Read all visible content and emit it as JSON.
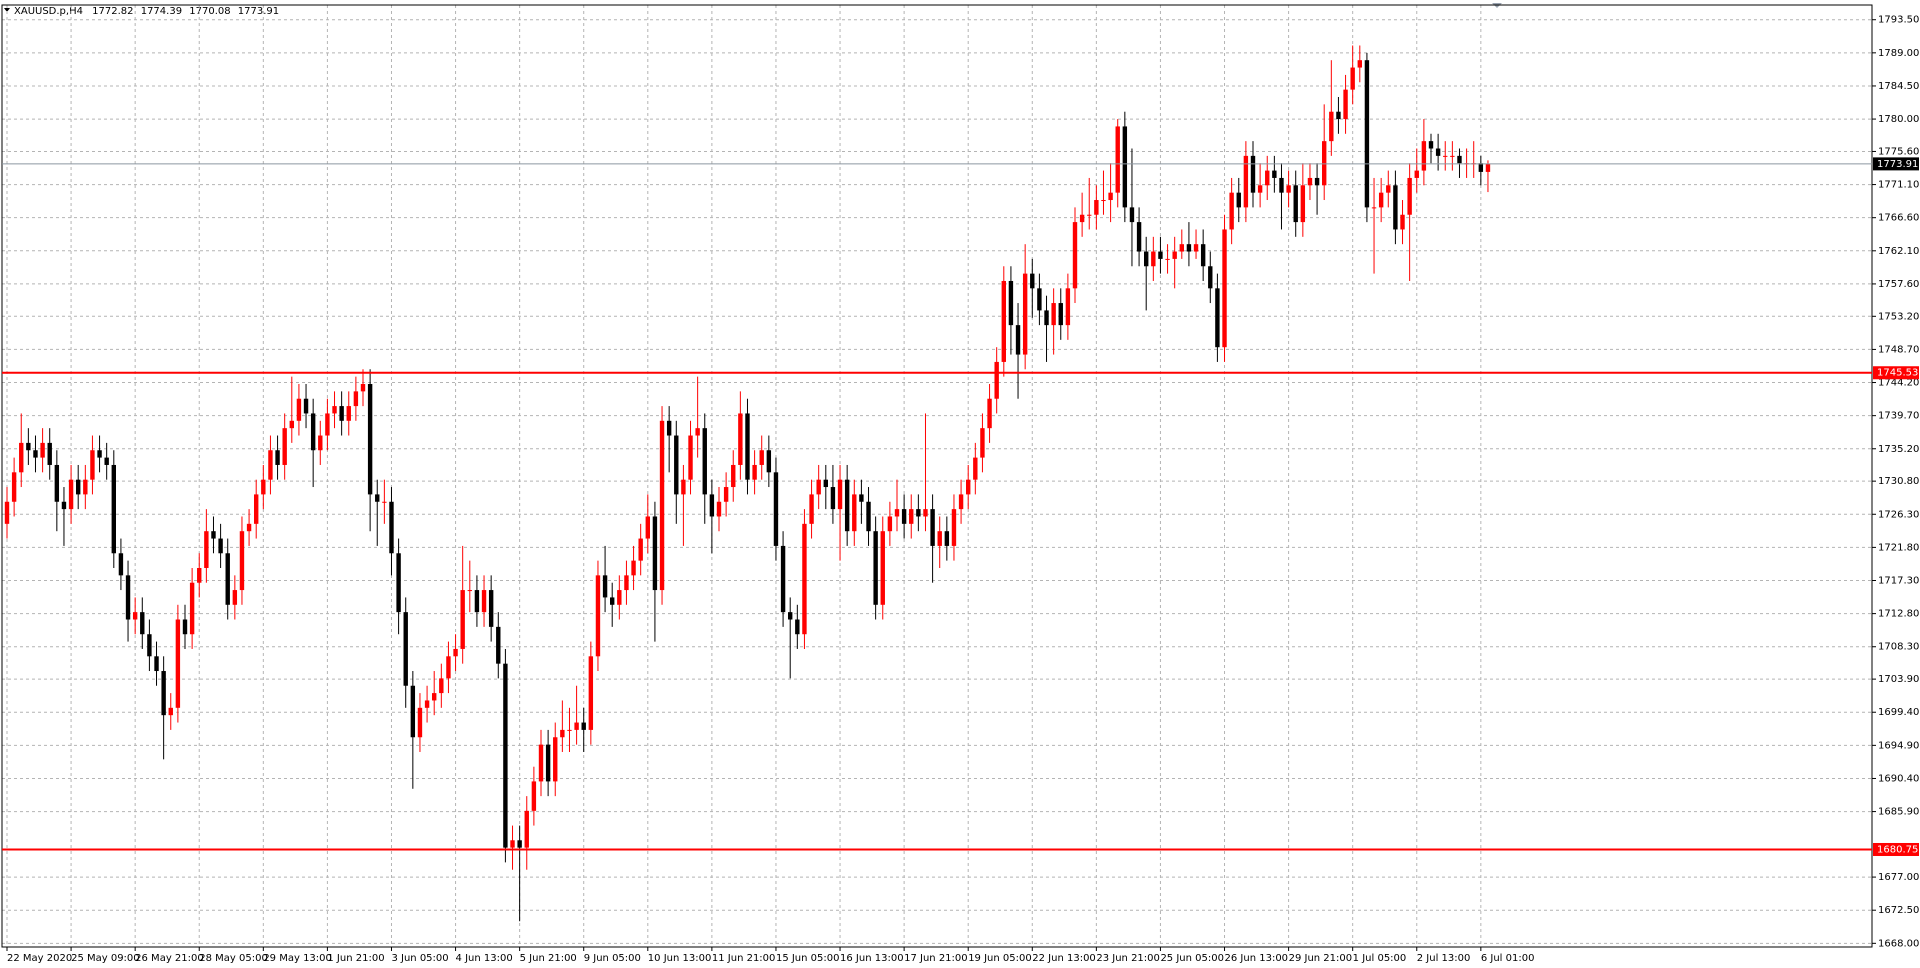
{
  "chart_data": {
    "type": "candlestick",
    "title": "XAUUSD.p,H4",
    "bull_color": "#ff0000",
    "bear_color": "#000000",
    "grid": true,
    "ylim": [
      1667.5,
      1795.5
    ],
    "yticks": [
      {
        "value": 1793.5,
        "label": "1793.50"
      },
      {
        "value": 1789,
        "label": "1789.00"
      },
      {
        "value": 1784.5,
        "label": "1784.50"
      },
      {
        "value": 1780,
        "label": "1780.00"
      },
      {
        "value": 1775.6,
        "label": "1775.60"
      },
      {
        "value": 1771.1,
        "label": "1771.10"
      },
      {
        "value": 1766.6,
        "label": "1766.60"
      },
      {
        "value": 1762.1,
        "label": "1762.10"
      },
      {
        "value": 1757.6,
        "label": "1757.60"
      },
      {
        "value": 1753.2,
        "label": "1753.20"
      },
      {
        "value": 1748.7,
        "label": "1748.70"
      },
      {
        "value": 1744.2,
        "label": "1744.20"
      },
      {
        "value": 1739.7,
        "label": "1739.70"
      },
      {
        "value": 1735.2,
        "label": "1735.20"
      },
      {
        "value": 1730.8,
        "label": "1730.80"
      },
      {
        "value": 1726.3,
        "label": "1726.30"
      },
      {
        "value": 1721.8,
        "label": "1721.80"
      },
      {
        "value": 1717.3,
        "label": "1717.30"
      },
      {
        "value": 1712.8,
        "label": "1712.80"
      },
      {
        "value": 1708.3,
        "label": "1708.30"
      },
      {
        "value": 1703.9,
        "label": "1703.90"
      },
      {
        "value": 1699.4,
        "label": "1699.40"
      },
      {
        "value": 1694.9,
        "label": "1694.90"
      },
      {
        "value": 1690.4,
        "label": "1690.40"
      },
      {
        "value": 1685.9,
        "label": "1685.90"
      },
      {
        "value": 1677,
        "label": "1677.00"
      },
      {
        "value": 1672.5,
        "label": "1672.50"
      },
      {
        "value": 1668,
        "label": "1668.00"
      }
    ],
    "hlines": [
      {
        "value": 1745.53,
        "color": "#ff0000"
      },
      {
        "value": 1680.75,
        "color": "#ff0000"
      }
    ],
    "x": [
      "22 May 2020",
      null,
      null,
      null,
      null,
      null,
      null,
      null,
      null,
      "25 May 09:00",
      null,
      null,
      null,
      null,
      null,
      null,
      null,
      null,
      "26 May 21:00",
      null,
      null,
      null,
      null,
      null,
      null,
      null,
      null,
      "28 May 05:00",
      null,
      null,
      null,
      null,
      null,
      null,
      null,
      null,
      "29 May 13:00",
      null,
      null,
      null,
      null,
      null,
      null,
      null,
      null,
      "1 Jun 21:00",
      null,
      null,
      null,
      null,
      null,
      null,
      null,
      null,
      "3 Jun 05:00",
      null,
      null,
      null,
      null,
      null,
      null,
      null,
      null,
      "4 Jun 13:00",
      null,
      null,
      null,
      null,
      null,
      null,
      null,
      null,
      "5 Jun 21:00",
      null,
      null,
      null,
      null,
      null,
      null,
      null,
      null,
      "9 Jun 05:00",
      null,
      null,
      null,
      null,
      null,
      null,
      null,
      null,
      "10 Jun 13:00",
      null,
      null,
      null,
      null,
      null,
      null,
      null,
      null,
      "11 Jun 21:00",
      null,
      null,
      null,
      null,
      null,
      null,
      null,
      null,
      "15 Jun 05:00",
      null,
      null,
      null,
      null,
      null,
      null,
      null,
      null,
      "16 Jun 13:00",
      null,
      null,
      null,
      null,
      null,
      null,
      null,
      null,
      "17 Jun 21:00",
      null,
      null,
      null,
      null,
      null,
      null,
      null,
      null,
      "19 Jun 05:00",
      null,
      null,
      null,
      null,
      null,
      null,
      null,
      null,
      "22 Jun 13:00",
      null,
      null,
      null,
      null,
      null,
      null,
      null,
      null,
      "23 Jun 21:00",
      null,
      null,
      null,
      null,
      null,
      null,
      null,
      null,
      "25 Jun 05:00",
      null,
      null,
      null,
      null,
      null,
      null,
      null,
      null,
      "26 Jun 13:00",
      null,
      null,
      null,
      null,
      null,
      null,
      null,
      null,
      "29 Jun 21:00",
      null,
      null,
      null,
      null,
      null,
      null,
      null,
      null,
      "1 Jul 05:00",
      null,
      null,
      null,
      null,
      null,
      null,
      null,
      null,
      "2 Jul 13:00",
      null,
      null,
      null,
      null,
      null,
      null,
      null,
      null,
      "6 Jul 01:00",
      null
    ],
    "open": [
      1725,
      1728,
      1732,
      1736,
      1735,
      1734,
      1736,
      1733,
      1728,
      1727,
      1731,
      1729,
      1731,
      1735,
      1734,
      1733,
      1721,
      1718,
      1712,
      1713,
      1710,
      1707,
      1705,
      1699,
      1700,
      1712,
      1710,
      1717,
      1719,
      1724,
      1723,
      1721,
      1714,
      1716,
      1724,
      1725,
      1729,
      1731,
      1735,
      1733,
      1738,
      1739,
      1742,
      1740,
      1735,
      1737,
      1740,
      1741,
      1739,
      1741,
      1743,
      1744,
      1729,
      1728,
      1728,
      1721,
      1713,
      1703,
      1696,
      1700,
      1701,
      1702,
      1704,
      1707,
      1708,
      1716,
      1716,
      1713,
      1716,
      1711,
      1706,
      1681,
      1682,
      1681,
      1686,
      1690,
      1695,
      1690,
      1696,
      1697,
      1697,
      1698,
      1697,
      1707,
      1718,
      1715,
      1714,
      1716,
      1718,
      1720,
      1723,
      1726,
      1716,
      1739,
      1737,
      1729,
      1731,
      1737,
      1738,
      1729,
      1726,
      1728,
      1730,
      1733,
      1740,
      1731,
      1733,
      1735,
      1732,
      1722,
      1713,
      1712,
      1710,
      1725,
      1729,
      1731,
      1730,
      1727,
      1731,
      1724,
      1729,
      1728,
      1724,
      1714,
      1724,
      1726,
      1727,
      1725,
      1727,
      1726,
      1727,
      1722,
      1724,
      1722,
      1727,
      1729,
      1731,
      1734,
      1738,
      1742,
      1747,
      1758,
      1752,
      1748,
      1759,
      1757,
      1754,
      1752,
      1755,
      1752,
      1757,
      1766,
      1767,
      1767,
      1769,
      1769,
      1770,
      1779,
      1768,
      1766,
      1762,
      1760,
      1762,
      1761,
      1761,
      1762,
      1763,
      1762,
      1763,
      1760,
      1757,
      1749,
      1765,
      1770,
      1768,
      1775,
      1770,
      1771,
      1773,
      1772,
      1770,
      1771,
      1766,
      1771,
      1772,
      1771,
      1777,
      1781,
      1780,
      1784,
      1787,
      1788,
      1768,
      1768,
      1770,
      1771,
      1765,
      1767,
      1772,
      1773,
      1777,
      1776,
      1775,
      1775,
      1775,
      1774,
      1774,
      1774,
      1772.82
    ],
    "high": [
      1730,
      1734,
      1740,
      1738,
      1737,
      1738,
      1738,
      1735,
      1730,
      1733,
      1733,
      1733,
      1737,
      1737,
      1736,
      1735,
      1723,
      1720,
      1715,
      1715,
      1712,
      1709,
      1707,
      1702,
      1714,
      1714,
      1719,
      1721,
      1727,
      1726,
      1725,
      1723,
      1718,
      1726,
      1727,
      1731,
      1733,
      1737,
      1737,
      1740,
      1745,
      1744,
      1744,
      1742,
      1739,
      1742,
      1743,
      1743,
      1743,
      1745,
      1746,
      1746,
      1731,
      1731,
      1730,
      1723,
      1715,
      1705,
      1702,
      1703,
      1705,
      1706,
      1709,
      1710,
      1722,
      1720,
      1718,
      1718,
      1718,
      1713,
      1708,
      1684,
      1684,
      1688,
      1692,
      1697,
      1697,
      1698,
      1701,
      1700,
      1703,
      1700,
      1709,
      1720,
      1722,
      1717,
      1718,
      1720,
      1722,
      1725,
      1729,
      1728,
      1741,
      1741,
      1739,
      1733,
      1739,
      1745,
      1740,
      1731,
      1730,
      1732,
      1735,
      1743,
      1742,
      1735,
      1737,
      1737,
      1734,
      1724,
      1715,
      1714,
      1727,
      1731,
      1733,
      1733,
      1733,
      1733,
      1733,
      1731,
      1731,
      1730,
      1726,
      1726,
      1728,
      1731,
      1729,
      1729,
      1729,
      1740,
      1729,
      1726,
      1726,
      1729,
      1731,
      1733,
      1736,
      1740,
      1744,
      1749,
      1760,
      1760,
      1755,
      1763,
      1761,
      1759,
      1756,
      1757,
      1757,
      1759,
      1768,
      1770,
      1772,
      1771,
      1773,
      1774,
      1780,
      1781,
      1776,
      1768,
      1764,
      1764,
      1764,
      1763,
      1764,
      1765,
      1766,
      1765,
      1765,
      1762,
      1759,
      1767,
      1772,
      1772,
      1777,
      1777,
      1774,
      1775,
      1775,
      1774,
      1773,
      1773,
      1774,
      1774,
      1774,
      1782,
      1788,
      1783,
      1786,
      1790,
      1790,
      1789,
      1772,
      1772,
      1773,
      1773,
      1769,
      1774,
      1776,
      1780,
      1778,
      1778,
      1777,
      1777,
      1776,
      1776,
      1777,
      1775,
      1774.39
    ],
    "low": [
      1723,
      1726,
      1730,
      1733,
      1732,
      1732,
      1731,
      1724,
      1722,
      1725,
      1727,
      1727,
      1729,
      1732,
      1731,
      1719,
      1716,
      1709,
      1710,
      1708,
      1705,
      1703,
      1693,
      1697,
      1698,
      1708,
      1708,
      1715,
      1717,
      1721,
      1719,
      1712,
      1712,
      1714,
      1722,
      1723,
      1727,
      1729,
      1731,
      1731,
      1736,
      1737,
      1738,
      1730,
      1733,
      1735,
      1738,
      1737,
      1737,
      1739,
      1741,
      1724,
      1722,
      1725,
      1718,
      1710,
      1700,
      1689,
      1694,
      1698,
      1699,
      1700,
      1702,
      1705,
      1706,
      1713,
      1711,
      1711,
      1709,
      1704,
      1679,
      1678,
      1671,
      1678,
      1684,
      1688,
      1688,
      1688,
      1694,
      1694,
      1695,
      1694,
      1695,
      1705,
      1713,
      1711,
      1712,
      1714,
      1716,
      1718,
      1721,
      1709,
      1714,
      1732,
      1725,
      1722,
      1729,
      1734,
      1725,
      1721,
      1724,
      1726,
      1728,
      1731,
      1729,
      1729,
      1731,
      1730,
      1720,
      1711,
      1704,
      1708,
      1708,
      1723,
      1727,
      1727,
      1725,
      1720,
      1722,
      1722,
      1725,
      1722,
      1712,
      1712,
      1722,
      1724,
      1723,
      1723,
      1724,
      1724,
      1717,
      1719,
      1720,
      1720,
      1725,
      1727,
      1729,
      1732,
      1736,
      1740,
      1745,
      1748,
      1742,
      1746,
      1753,
      1752,
      1747,
      1748,
      1750,
      1750,
      1755,
      1764,
      1765,
      1765,
      1767,
      1766,
      1768,
      1766,
      1760,
      1760,
      1754,
      1758,
      1759,
      1759,
      1757,
      1761,
      1760,
      1761,
      1758,
      1755,
      1747,
      1747,
      1763,
      1766,
      1766,
      1768,
      1768,
      1769,
      1770,
      1765,
      1768,
      1764,
      1764,
      1769,
      1767,
      1769,
      1775,
      1778,
      1778,
      1782,
      1785,
      1766,
      1759,
      1766,
      1768,
      1763,
      1763,
      1758,
      1770,
      1771,
      1774,
      1773,
      1773,
      1773,
      1772,
      1772,
      1772,
      1771,
      1770.08
    ],
    "close": [
      1728,
      1732,
      1736,
      1735,
      1734,
      1736,
      1733,
      1728,
      1727,
      1731,
      1729,
      1731,
      1735,
      1734,
      1733,
      1721,
      1718,
      1712,
      1713,
      1710,
      1707,
      1705,
      1699,
      1700,
      1712,
      1710,
      1717,
      1719,
      1724,
      1723,
      1721,
      1714,
      1716,
      1724,
      1725,
      1729,
      1731,
      1735,
      1733,
      1738,
      1739,
      1742,
      1740,
      1735,
      1737,
      1740,
      1741,
      1739,
      1741,
      1743,
      1744,
      1729,
      1728,
      1728,
      1721,
      1713,
      1703,
      1696,
      1700,
      1701,
      1702,
      1704,
      1707,
      1708,
      1716,
      1716,
      1713,
      1716,
      1711,
      1706,
      1681,
      1682,
      1681,
      1686,
      1690,
      1695,
      1690,
      1696,
      1697,
      1697,
      1698,
      1697,
      1707,
      1718,
      1715,
      1714,
      1716,
      1718,
      1720,
      1723,
      1726,
      1716,
      1739,
      1737,
      1729,
      1731,
      1737,
      1738,
      1729,
      1726,
      1728,
      1730,
      1733,
      1740,
      1731,
      1733,
      1735,
      1732,
      1722,
      1713,
      1712,
      1710,
      1725,
      1729,
      1731,
      1730,
      1727,
      1731,
      1724,
      1729,
      1728,
      1724,
      1714,
      1724,
      1726,
      1727,
      1725,
      1727,
      1726,
      1727,
      1722,
      1724,
      1722,
      1727,
      1729,
      1731,
      1734,
      1738,
      1742,
      1747,
      1758,
      1752,
      1748,
      1759,
      1757,
      1754,
      1752,
      1755,
      1752,
      1757,
      1766,
      1767,
      1767,
      1769,
      1769,
      1770,
      1779,
      1768,
      1766,
      1762,
      1760,
      1762,
      1761,
      1761,
      1762,
      1763,
      1762,
      1763,
      1760,
      1757,
      1749,
      1765,
      1770,
      1768,
      1775,
      1770,
      1771,
      1773,
      1772,
      1770,
      1771,
      1766,
      1771,
      1772,
      1771,
      1777,
      1781,
      1780,
      1784,
      1787,
      1788,
      1768,
      1768,
      1770,
      1771,
      1765,
      1767,
      1772,
      1773,
      1777,
      1776,
      1775,
      1775,
      1775,
      1774,
      1774,
      1774,
      1772.82,
      1773.91
    ]
  }
}
